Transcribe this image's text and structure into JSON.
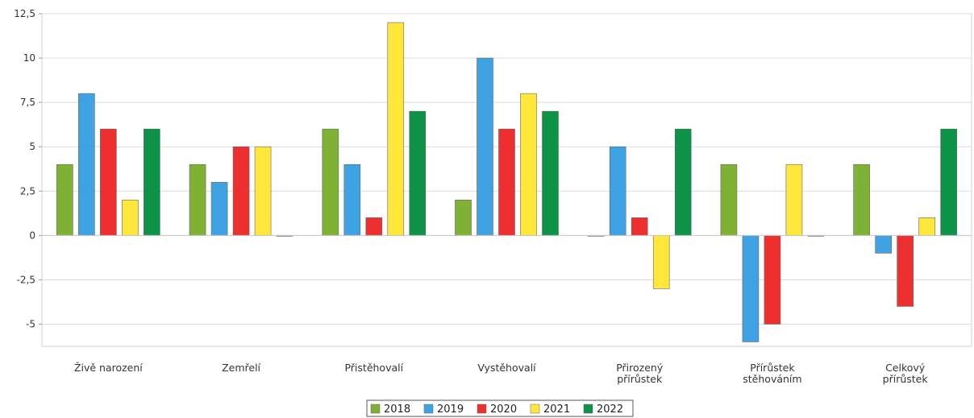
{
  "chart_data": {
    "type": "bar",
    "categories": [
      [
        "Živě narození"
      ],
      [
        "Zemřelí"
      ],
      [
        "Přistěhovalí"
      ],
      [
        "Vystěhovalí"
      ],
      [
        "Přirozený",
        "přírůstek"
      ],
      [
        "Přírůstek",
        "stěhováním"
      ],
      [
        "Celkový",
        "přírůstek"
      ]
    ],
    "series": [
      {
        "name": "2018",
        "color": "#7fb134",
        "values": [
          4,
          4,
          6,
          2,
          0,
          4,
          4
        ]
      },
      {
        "name": "2019",
        "color": "#3fa3e3",
        "values": [
          8,
          3,
          4,
          10,
          5,
          -6,
          -1
        ]
      },
      {
        "name": "2020",
        "color": "#ed2f2f",
        "values": [
          6,
          5,
          1,
          6,
          1,
          -5,
          -4
        ]
      },
      {
        "name": "2021",
        "color": "#ffe63a",
        "values": [
          2,
          5,
          12,
          8,
          -3,
          4,
          1
        ]
      },
      {
        "name": "2022",
        "color": "#0d9348",
        "values": [
          6,
          0,
          7,
          7,
          6,
          0,
          6
        ]
      }
    ],
    "ylim": [
      -6.25,
      12.5
    ],
    "yticks": [
      12.5,
      10,
      7.5,
      5,
      2.5,
      0,
      -2.5,
      -5
    ],
    "ytick_labels": [
      "12,5",
      "10",
      "7,5",
      "5",
      "2,5",
      "0",
      "-2,5",
      "-5"
    ],
    "grid": true,
    "legend_position": "bottom-center",
    "title": "",
    "xlabel": "",
    "ylabel": ""
  }
}
